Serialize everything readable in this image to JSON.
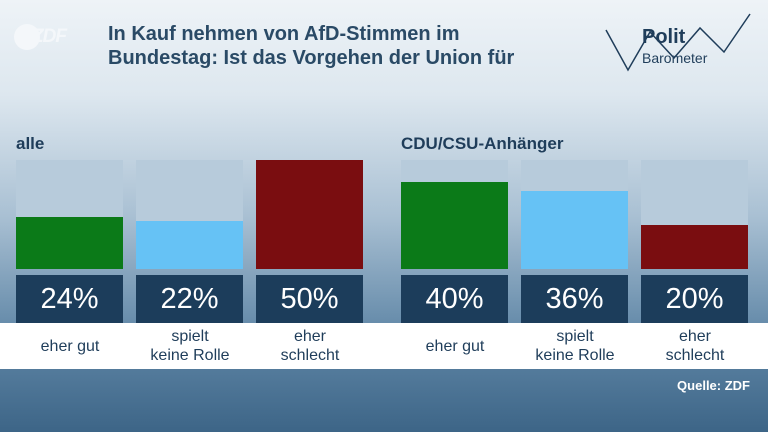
{
  "header": {
    "logo_text": "ZDF",
    "title_line1": "In Kauf nehmen von AfD-Stimmen im",
    "title_line2": "Bundestag: Ist das Vorgehen der Union für",
    "brand_word1": "Polit",
    "brand_word2": "Barometer"
  },
  "chart_data": {
    "type": "bar",
    "title": "In Kauf nehmen von AfD-Stimmen im Bundestag: Ist das Vorgehen der Union für",
    "categories": [
      "eher gut",
      "spielt keine Rolle",
      "eher schlecht"
    ],
    "categories_lines": [
      [
        "eher gut"
      ],
      [
        "spielt",
        "keine Rolle"
      ],
      [
        "eher",
        "schlecht"
      ]
    ],
    "ylim": [
      0,
      50
    ],
    "grid": false,
    "legend": "none",
    "series": [
      {
        "name": "alle",
        "values": [
          24,
          22,
          50
        ],
        "labels": [
          "24%",
          "22%",
          "50%"
        ]
      },
      {
        "name": "CDU/CSU-Anhänger",
        "values": [
          40,
          36,
          20
        ],
        "labels": [
          "40%",
          "36%",
          "20%"
        ]
      }
    ],
    "colors": [
      "#0b7a18",
      "#66c2f5",
      "#7a0d10"
    ],
    "source": "Quelle: ZDF"
  }
}
